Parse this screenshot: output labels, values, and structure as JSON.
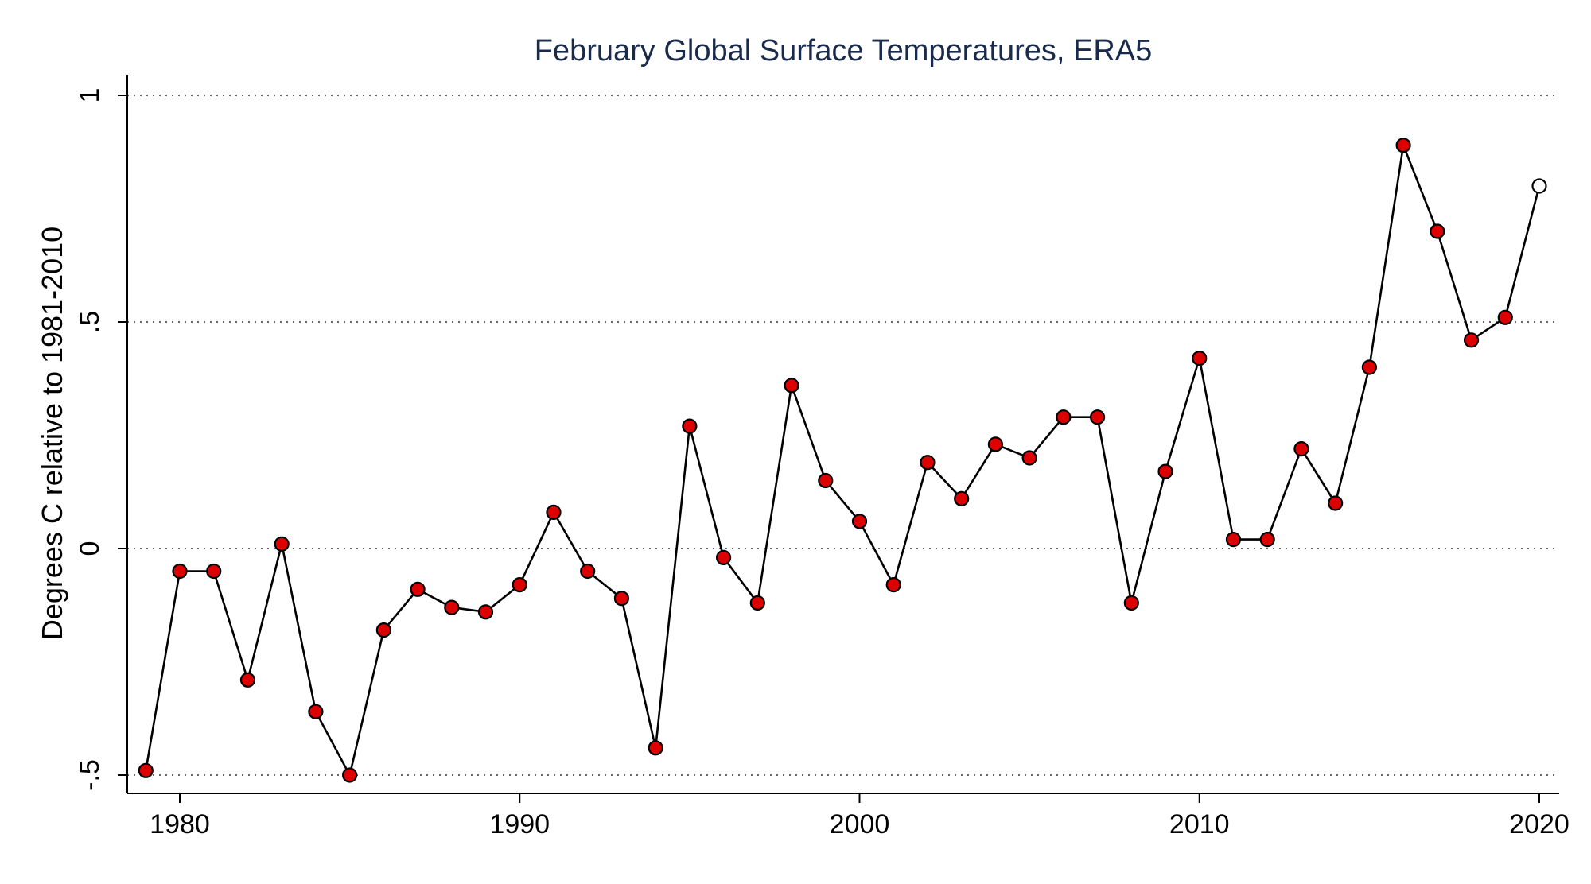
{
  "chart_data": {
    "type": "line",
    "title": "February Global Surface Temperatures, ERA5",
    "xlabel": "",
    "ylabel": "Degrees C relative to 1981-2010",
    "xlim": [
      1978.9,
      2020.5
    ],
    "ylim": [
      -0.55,
      1.05
    ],
    "x_ticks": [
      1980,
      1990,
      2000,
      2010,
      2020
    ],
    "x_tick_labels": [
      "1980",
      "1990",
      "2000",
      "2010",
      "2020"
    ],
    "y_ticks": [
      -0.5,
      0,
      0.5,
      1
    ],
    "y_tick_labels": [
      "-.5",
      "0",
      ".5",
      "1"
    ],
    "grid": true,
    "grid_axis": "y",
    "series": [
      {
        "x": [
          1979,
          1980,
          1981,
          1982,
          1983,
          1984,
          1985,
          1986,
          1987,
          1988,
          1989,
          1990,
          1991,
          1992,
          1993,
          1994,
          1995,
          1996,
          1997,
          1998,
          1999,
          2000,
          2001,
          2002,
          2003,
          2004,
          2005,
          2006,
          2007,
          2008,
          2009,
          2010,
          2011,
          2012,
          2013,
          2014,
          2015,
          2016,
          2017,
          2018,
          2019,
          2020
        ],
        "values": [
          -0.49,
          -0.05,
          -0.05,
          -0.29,
          0.01,
          -0.36,
          -0.5,
          -0.18,
          -0.09,
          -0.13,
          -0.14,
          -0.08,
          0.08,
          -0.05,
          -0.11,
          -0.44,
          0.27,
          -0.02,
          -0.12,
          0.36,
          0.15,
          0.06,
          -0.08,
          0.19,
          0.11,
          0.23,
          0.2,
          0.29,
          0.29,
          -0.12,
          0.17,
          0.42,
          0.02,
          0.02,
          0.22,
          0.1,
          0.4,
          0.89,
          0.7,
          0.46,
          0.51,
          0.8
        ]
      }
    ],
    "marker_fill": "#dd0000",
    "marker_stroke": "#000000",
    "last_point_fill": "#ffffff",
    "line_color": "#000000",
    "title_color": "#1a2a4a"
  }
}
